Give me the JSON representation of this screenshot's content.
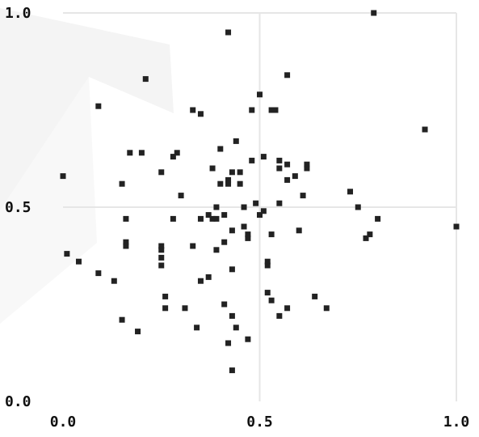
{
  "chart_data": {
    "type": "scatter",
    "title": "",
    "xlabel": "",
    "ylabel": "",
    "xlim": [
      0.0,
      1.0
    ],
    "ylim": [
      0.0,
      1.0
    ],
    "x_ticks": [
      "0.0",
      "0.5",
      "1.0"
    ],
    "y_ticks": [
      "0.0",
      "0.5",
      "1.0"
    ],
    "grid": true,
    "legend": "none",
    "colors": {
      "background": "#ffffff",
      "gridline": "#e6e6e6",
      "point": "#222222",
      "tick_label": "#111111"
    },
    "points": [
      [
        0.0,
        0.58
      ],
      [
        0.01,
        0.38
      ],
      [
        0.04,
        0.36
      ],
      [
        0.09,
        0.33
      ],
      [
        0.13,
        0.31
      ],
      [
        0.09,
        0.76
      ],
      [
        0.15,
        0.56
      ],
      [
        0.17,
        0.64
      ],
      [
        0.16,
        0.47
      ],
      [
        0.16,
        0.41
      ],
      [
        0.16,
        0.4
      ],
      [
        0.15,
        0.21
      ],
      [
        0.19,
        0.18
      ],
      [
        0.2,
        0.64
      ],
      [
        0.21,
        0.83
      ],
      [
        0.25,
        0.59
      ],
      [
        0.25,
        0.4
      ],
      [
        0.25,
        0.39
      ],
      [
        0.25,
        0.37
      ],
      [
        0.25,
        0.35
      ],
      [
        0.26,
        0.27
      ],
      [
        0.26,
        0.24
      ],
      [
        0.28,
        0.63
      ],
      [
        0.29,
        0.64
      ],
      [
        0.28,
        0.47
      ],
      [
        0.3,
        0.53
      ],
      [
        0.31,
        0.24
      ],
      [
        0.33,
        0.75
      ],
      [
        0.33,
        0.4
      ],
      [
        0.34,
        0.19
      ],
      [
        0.35,
        0.74
      ],
      [
        0.35,
        0.47
      ],
      [
        0.35,
        0.31
      ],
      [
        0.37,
        0.48
      ],
      [
        0.37,
        0.32
      ],
      [
        0.38,
        0.6
      ],
      [
        0.38,
        0.47
      ],
      [
        0.39,
        0.5
      ],
      [
        0.39,
        0.47
      ],
      [
        0.39,
        0.39
      ],
      [
        0.4,
        0.56
      ],
      [
        0.4,
        0.65
      ],
      [
        0.41,
        0.48
      ],
      [
        0.41,
        0.41
      ],
      [
        0.41,
        0.25
      ],
      [
        0.42,
        0.57
      ],
      [
        0.42,
        0.56
      ],
      [
        0.42,
        0.15
      ],
      [
        0.42,
        0.95
      ],
      [
        0.43,
        0.59
      ],
      [
        0.43,
        0.44
      ],
      [
        0.43,
        0.34
      ],
      [
        0.43,
        0.22
      ],
      [
        0.43,
        0.08
      ],
      [
        0.44,
        0.67
      ],
      [
        0.44,
        0.19
      ],
      [
        0.45,
        0.59
      ],
      [
        0.45,
        0.56
      ],
      [
        0.46,
        0.45
      ],
      [
        0.46,
        0.5
      ],
      [
        0.47,
        0.43
      ],
      [
        0.47,
        0.42
      ],
      [
        0.47,
        0.16
      ],
      [
        0.48,
        0.75
      ],
      [
        0.48,
        0.62
      ],
      [
        0.49,
        0.51
      ],
      [
        0.5,
        0.48
      ],
      [
        0.5,
        0.79
      ],
      [
        0.51,
        0.49
      ],
      [
        0.51,
        0.63
      ],
      [
        0.52,
        0.35
      ],
      [
        0.52,
        0.36
      ],
      [
        0.52,
        0.28
      ],
      [
        0.53,
        0.75
      ],
      [
        0.53,
        0.43
      ],
      [
        0.53,
        0.26
      ],
      [
        0.54,
        0.75
      ],
      [
        0.55,
        0.62
      ],
      [
        0.55,
        0.6
      ],
      [
        0.55,
        0.51
      ],
      [
        0.55,
        0.22
      ],
      [
        0.57,
        0.84
      ],
      [
        0.57,
        0.61
      ],
      [
        0.57,
        0.57
      ],
      [
        0.57,
        0.24
      ],
      [
        0.59,
        0.58
      ],
      [
        0.6,
        0.44
      ],
      [
        0.61,
        0.53
      ],
      [
        0.62,
        0.61
      ],
      [
        0.62,
        0.6
      ],
      [
        0.64,
        0.27
      ],
      [
        0.67,
        0.24
      ],
      [
        0.73,
        0.54
      ],
      [
        0.75,
        0.5
      ],
      [
        0.77,
        0.42
      ],
      [
        0.78,
        0.43
      ],
      [
        0.8,
        0.47
      ],
      [
        0.79,
        1.0
      ],
      [
        0.92,
        0.7
      ],
      [
        1.0,
        0.45
      ]
    ]
  }
}
